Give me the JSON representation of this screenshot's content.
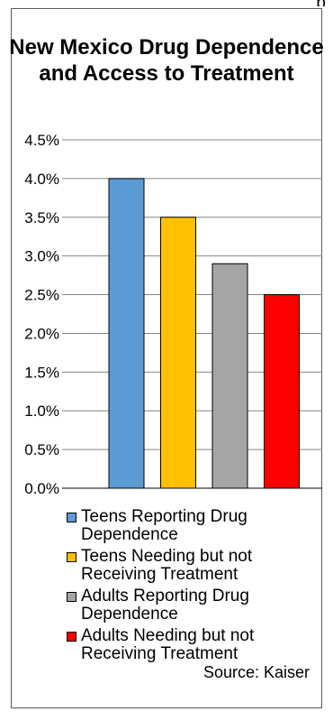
{
  "top_text": "p",
  "chart_data": {
    "type": "bar",
    "title": "New Mexico Drug Dependence and Access to Treatment",
    "categories": [
      "Teens Reporting Drug Dependence",
      "Teens Needing but not Receiving Treatment",
      "Adults Reporting Drug Dependence",
      "Adults Needing but not Receiving Treatment"
    ],
    "values": [
      4.0,
      3.5,
      2.9,
      2.5
    ],
    "colors": [
      "#5b9bd5",
      "#ffc000",
      "#a5a5a5",
      "#ff0000"
    ],
    "ylim": [
      0,
      4.5
    ],
    "yticks": [
      "0.0%",
      "0.5%",
      "1.0%",
      "1.5%",
      "2.0%",
      "2.5%",
      "3.0%",
      "3.5%",
      "4.0%",
      "4.5%"
    ],
    "grid": true,
    "legend": "bottom"
  },
  "source": "Source: Kaiser"
}
